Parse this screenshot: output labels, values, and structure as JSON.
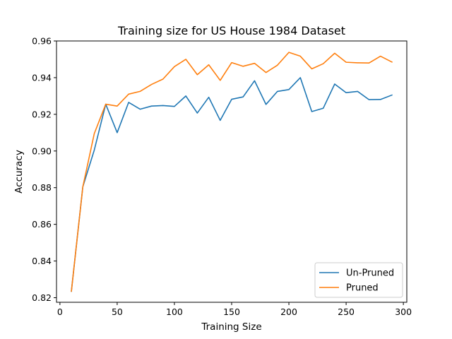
{
  "chart_data": {
    "type": "line",
    "title": "Training size for US House 1984 Dataset",
    "xlabel": "Training Size",
    "ylabel": "Accuracy",
    "xlim": [
      -3,
      303
    ],
    "ylim": [
      0.8175,
      0.96
    ],
    "xticks": [
      0,
      50,
      100,
      150,
      200,
      250,
      300
    ],
    "yticks": [
      0.82,
      0.84,
      0.86,
      0.88,
      0.9,
      0.92,
      0.94,
      0.96
    ],
    "ytick_labels": [
      "0.82",
      "0.84",
      "0.86",
      "0.88",
      "0.90",
      "0.92",
      "0.94",
      "0.96"
    ],
    "grid": false,
    "legend": "lower-right",
    "x": [
      10,
      20,
      30,
      40,
      50,
      60,
      70,
      80,
      90,
      100,
      110,
      120,
      130,
      140,
      150,
      160,
      170,
      180,
      190,
      200,
      210,
      220,
      230,
      240,
      250,
      260,
      270,
      280,
      290
    ],
    "series": [
      {
        "name": "Un-Pruned",
        "color": "#1f77b4",
        "values": [
          0.8235,
          0.8805,
          0.9005,
          0.9255,
          0.91,
          0.9265,
          0.9228,
          0.9245,
          0.9248,
          0.9243,
          0.93,
          0.9207,
          0.9293,
          0.9167,
          0.9282,
          0.9295,
          0.9383,
          0.9254,
          0.9325,
          0.9335,
          0.94,
          0.9215,
          0.9233,
          0.9365,
          0.9318,
          0.9325,
          0.928,
          0.9281,
          0.9305
        ]
      },
      {
        "name": "Pruned",
        "color": "#ff7f0e",
        "values": [
          0.8235,
          0.8805,
          0.9095,
          0.9255,
          0.9245,
          0.931,
          0.9325,
          0.9363,
          0.9392,
          0.946,
          0.95,
          0.9416,
          0.947,
          0.9385,
          0.9482,
          0.9462,
          0.9478,
          0.9428,
          0.9468,
          0.9538,
          0.9517,
          0.9448,
          0.9476,
          0.9533,
          0.9484,
          0.9481,
          0.948,
          0.9517,
          0.9485
        ]
      }
    ]
  }
}
